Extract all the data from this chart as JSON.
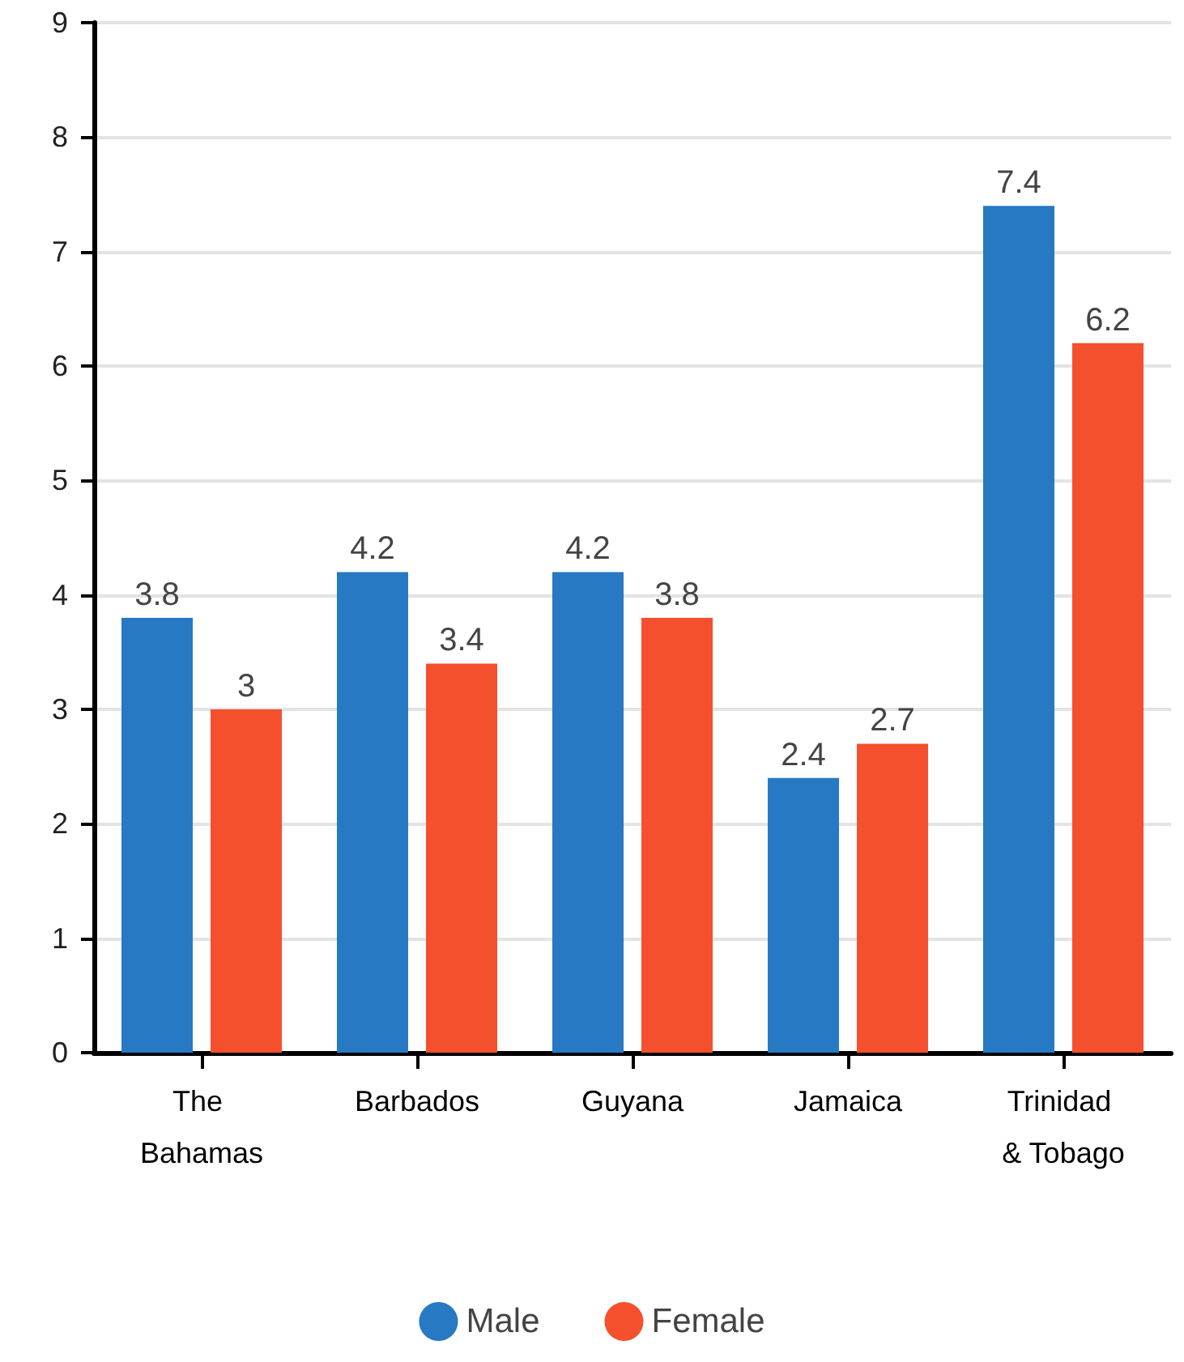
{
  "chart_data": {
    "type": "bar",
    "categories": [
      "The Bahamas",
      "Barbados",
      "Guyana",
      "Jamaica",
      "Trinidad & Tobago"
    ],
    "series": [
      {
        "name": "Male",
        "color": "#2779c3",
        "values": [
          3.8,
          4.2,
          4.2,
          2.4,
          7.4
        ]
      },
      {
        "name": "Female",
        "color": "#f5502e",
        "values": [
          3,
          3.4,
          3.8,
          2.7,
          6.2
        ]
      }
    ],
    "ylim": [
      0,
      9
    ],
    "yticks": [
      0,
      1,
      2,
      3,
      4,
      5,
      6,
      7,
      8,
      9
    ],
    "grid": "y",
    "legend": "bottom",
    "data_labels": true
  }
}
